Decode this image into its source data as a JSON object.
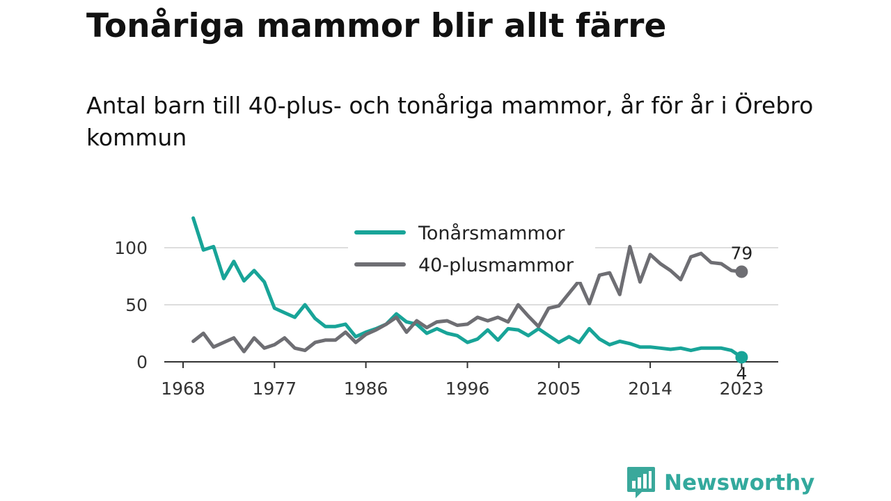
{
  "header": {
    "title": "Tonåriga mammor blir allt färre",
    "subtitle": "Antal barn till 40-plus- och tonåriga mammor, år för år i Örebro kommun"
  },
  "brand": {
    "name": "Newsworthy",
    "icon": "newsworthy-logo-icon",
    "color": "#3aa89b"
  },
  "chart_data": {
    "type": "line",
    "title": "",
    "xlabel": "",
    "ylabel": "",
    "x": [
      1969,
      1970,
      1971,
      1972,
      1973,
      1974,
      1975,
      1976,
      1977,
      1978,
      1979,
      1980,
      1981,
      1982,
      1983,
      1984,
      1985,
      1986,
      1987,
      1988,
      1989,
      1990,
      1991,
      1992,
      1993,
      1994,
      1995,
      1996,
      1997,
      1998,
      1999,
      2000,
      2001,
      2002,
      2003,
      2004,
      2005,
      2006,
      2007,
      2008,
      2009,
      2010,
      2011,
      2012,
      2013,
      2014,
      2015,
      2016,
      2017,
      2018,
      2019,
      2020,
      2021,
      2022,
      2023
    ],
    "xticks": [
      "1968",
      "1977",
      "1986",
      "1996",
      "2005",
      "2014",
      "2023"
    ],
    "xtick_values": [
      1968,
      1977,
      1986,
      1996,
      2005,
      2014,
      2023
    ],
    "ylim": [
      0,
      125
    ],
    "yticks": [
      0,
      50,
      100
    ],
    "grid": true,
    "legend_position": "top-center",
    "series": [
      {
        "name": "Tonårsmammor",
        "color": "#18a498",
        "values": [
          126,
          98,
          101,
          73,
          88,
          71,
          80,
          70,
          47,
          43,
          39,
          50,
          38,
          31,
          31,
          33,
          22,
          26,
          29,
          33,
          42,
          35,
          33,
          25,
          29,
          25,
          23,
          17,
          20,
          28,
          19,
          29,
          28,
          23,
          29,
          23,
          17,
          22,
          17,
          29,
          20,
          15,
          18,
          16,
          13,
          13,
          12,
          11,
          12,
          10,
          12,
          12,
          12,
          10,
          4
        ],
        "end_label": "4"
      },
      {
        "name": "40-plusmammor",
        "color": "#6e6e73",
        "values": [
          18,
          25,
          13,
          17,
          21,
          9,
          21,
          12,
          15,
          21,
          12,
          10,
          17,
          19,
          19,
          26,
          17,
          24,
          28,
          33,
          39,
          26,
          36,
          30,
          35,
          36,
          32,
          33,
          39,
          36,
          39,
          35,
          50,
          40,
          31,
          47,
          49,
          60,
          71,
          51,
          76,
          78,
          59,
          101,
          70,
          94,
          86,
          80,
          72,
          92,
          95,
          87,
          86,
          80,
          79
        ],
        "end_label": "79"
      }
    ]
  }
}
